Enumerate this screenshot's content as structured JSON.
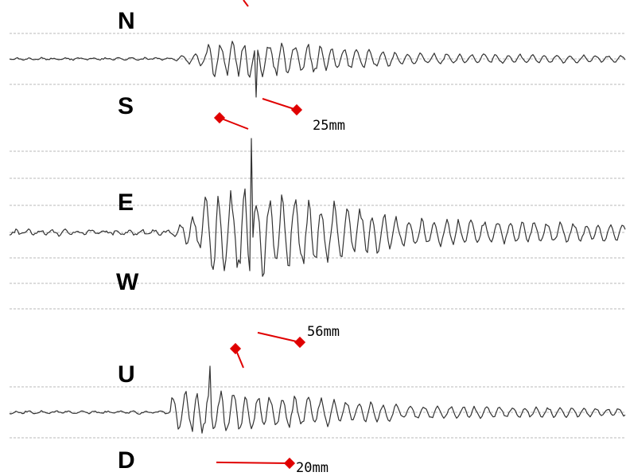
{
  "colors": {
    "background": "#ffffff",
    "grid": "#b8b8b8",
    "trace": "#333333",
    "marker": "#e00000"
  },
  "chart_data": {
    "type": "line",
    "title": "",
    "xlabel": "",
    "ylabel": "",
    "grid": true,
    "grid_style": "dashed horizontal",
    "channels": [
      {
        "id": "ns",
        "upper_label": "N",
        "lower_label": "S",
        "max_amplitude": 25,
        "unit": "mm",
        "amplitude_label": "25mm",
        "max_direction": "down"
      },
      {
        "id": "ew",
        "upper_label": "E",
        "lower_label": "W",
        "max_amplitude": 56,
        "unit": "mm",
        "amplitude_label": "56mm",
        "max_direction": "up"
      },
      {
        "id": "ud",
        "upper_label": "U",
        "lower_label": "D",
        "max_amplitude": 20,
        "unit": "mm",
        "amplitude_label": "20mm",
        "max_direction": "up"
      }
    ]
  }
}
